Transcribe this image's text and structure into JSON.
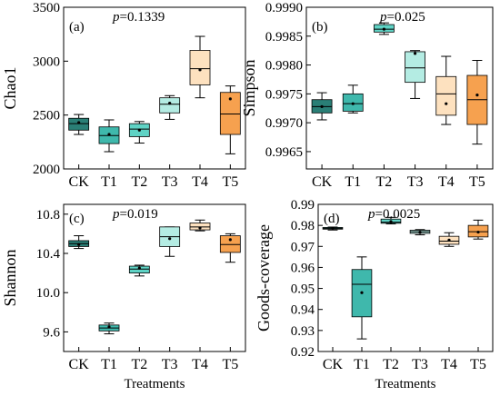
{
  "colors": {
    "CK": "#2a7f76",
    "T1": "#3fb8ac",
    "T2": "#5fd3c5",
    "T3": "#b4ece3",
    "T4": "#fde1bf",
    "T5": "#f6a14f"
  },
  "chart_data": [
    {
      "type": "box",
      "panel_label": "(a)",
      "p_value": "=0.1339",
      "xlabel": "",
      "ylabel": "Chao1",
      "categories": [
        "CK",
        "T1",
        "T2",
        "T3",
        "T4",
        "T5"
      ],
      "ylim": [
        2000,
        3500
      ],
      "yticks": [
        2000,
        2500,
        3000,
        3500
      ],
      "ytick_labels": [
        "2000",
        "2500",
        "3000",
        "3500"
      ],
      "boxes": [
        {
          "whisker_low": 2320,
          "q1": 2360,
          "median": 2420,
          "q3": 2470,
          "whisker_high": 2505,
          "mean": 2430
        },
        {
          "whisker_low": 2160,
          "q1": 2235,
          "median": 2310,
          "q3": 2390,
          "whisker_high": 2455,
          "mean": 2320
        },
        {
          "whisker_low": 2240,
          "q1": 2300,
          "median": 2370,
          "q3": 2420,
          "whisker_high": 2440,
          "mean": 2360
        },
        {
          "whisker_low": 2460,
          "q1": 2520,
          "median": 2600,
          "q3": 2660,
          "whisker_high": 2680,
          "mean": 2610
        },
        {
          "whisker_low": 2660,
          "q1": 2780,
          "median": 2930,
          "q3": 3100,
          "whisker_high": 3230,
          "mean": 2920
        },
        {
          "whisker_low": 2140,
          "q1": 2320,
          "median": 2510,
          "q3": 2710,
          "whisker_high": 2770,
          "mean": 2650
        }
      ]
    },
    {
      "type": "box",
      "panel_label": "(b)",
      "p_value": "=0.025",
      "xlabel": "",
      "ylabel": "Simpson",
      "categories": [
        "CK",
        "T1",
        "T2",
        "T3",
        "T4",
        "T5"
      ],
      "ylim": [
        0.9962,
        0.999
      ],
      "yticks": [
        0.9965,
        0.997,
        0.9975,
        0.998,
        0.9985,
        0.999
      ],
      "ytick_labels": [
        "0.9965",
        "0.9970",
        "0.9975",
        "0.9980",
        "0.9985",
        "0.9990"
      ],
      "boxes": [
        {
          "whisker_low": 0.99705,
          "q1": 0.99717,
          "median": 0.99728,
          "q3": 0.9974,
          "whisker_high": 0.99752,
          "mean": 0.99728
        },
        {
          "whisker_low": 0.99717,
          "q1": 0.9972,
          "median": 0.99733,
          "q3": 0.9975,
          "whisker_high": 0.99765,
          "mean": 0.99733
        },
        {
          "whisker_low": 0.99853,
          "q1": 0.99857,
          "median": 0.99862,
          "q3": 0.9987,
          "whisker_high": 0.99873,
          "mean": 0.99862
        },
        {
          "whisker_low": 0.99742,
          "q1": 0.9977,
          "median": 0.99795,
          "q3": 0.99823,
          "whisker_high": 0.99825,
          "mean": 0.9982
        },
        {
          "whisker_low": 0.99697,
          "q1": 0.99713,
          "median": 0.9975,
          "q3": 0.9978,
          "whisker_high": 0.99815,
          "mean": 0.99733
        },
        {
          "whisker_low": 0.99663,
          "q1": 0.99697,
          "median": 0.9974,
          "q3": 0.99782,
          "whisker_high": 0.99808,
          "mean": 0.99748
        }
      ]
    },
    {
      "type": "box",
      "panel_label": "(c)",
      "p_value": "=0.019",
      "xlabel": "Treatments",
      "ylabel": "Shannon",
      "categories": [
        "CK",
        "T1",
        "T2",
        "T3",
        "T4",
        "T5"
      ],
      "ylim": [
        9.4,
        10.9
      ],
      "yticks": [
        9.6,
        10.0,
        10.4,
        10.8
      ],
      "ytick_labels": [
        "9.6",
        "10.0",
        "10.4",
        "10.8"
      ],
      "boxes": [
        {
          "whisker_low": 10.45,
          "q1": 10.47,
          "median": 10.5,
          "q3": 10.53,
          "whisker_high": 10.58,
          "mean": 10.49
        },
        {
          "whisker_low": 9.58,
          "q1": 9.61,
          "median": 9.64,
          "q3": 9.67,
          "whisker_high": 9.69,
          "mean": 9.65
        },
        {
          "whisker_low": 10.17,
          "q1": 10.2,
          "median": 10.24,
          "q3": 10.27,
          "whisker_high": 10.28,
          "mean": 10.25
        },
        {
          "whisker_low": 10.37,
          "q1": 10.47,
          "median": 10.57,
          "q3": 10.67,
          "whisker_high": 10.67,
          "mean": 10.55
        },
        {
          "whisker_low": 10.63,
          "q1": 10.64,
          "median": 10.67,
          "q3": 10.71,
          "whisker_high": 10.74,
          "mean": 10.66
        },
        {
          "whisker_low": 10.31,
          "q1": 10.41,
          "median": 10.49,
          "q3": 10.58,
          "whisker_high": 10.6,
          "mean": 10.54
        }
      ]
    },
    {
      "type": "box",
      "panel_label": "(d)",
      "p_value": "=0.0025",
      "xlabel": "Treatments",
      "ylabel": "Goods-coverage",
      "categories": [
        "CK",
        "T1",
        "T2",
        "T3",
        "T4",
        "T5"
      ],
      "ylim": [
        0.92,
        0.99
      ],
      "yticks": [
        0.92,
        0.93,
        0.94,
        0.95,
        0.96,
        0.97,
        0.98,
        0.99
      ],
      "ytick_labels": [
        "0.92",
        "0.93",
        "0.94",
        "0.95",
        "0.96",
        "0.97",
        "0.98",
        "0.99"
      ],
      "boxes": [
        {
          "whisker_low": 0.9778,
          "q1": 0.9782,
          "median": 0.9785,
          "q3": 0.979,
          "whisker_high": 0.9792,
          "mean": 0.9786
        },
        {
          "whisker_low": 0.926,
          "q1": 0.9365,
          "median": 0.952,
          "q3": 0.959,
          "whisker_high": 0.965,
          "mean": 0.948
        },
        {
          "whisker_low": 0.9807,
          "q1": 0.981,
          "median": 0.9815,
          "q3": 0.983,
          "whisker_high": 0.9838,
          "mean": 0.9818
        },
        {
          "whisker_low": 0.9755,
          "q1": 0.9762,
          "median": 0.977,
          "q3": 0.9777,
          "whisker_high": 0.978,
          "mean": 0.9768
        },
        {
          "whisker_low": 0.97,
          "q1": 0.971,
          "median": 0.9725,
          "q3": 0.9748,
          "whisker_high": 0.9765,
          "mean": 0.973
        },
        {
          "whisker_low": 0.9735,
          "q1": 0.9745,
          "median": 0.977,
          "q3": 0.98,
          "whisker_high": 0.9825,
          "mean": 0.9768
        }
      ]
    }
  ]
}
